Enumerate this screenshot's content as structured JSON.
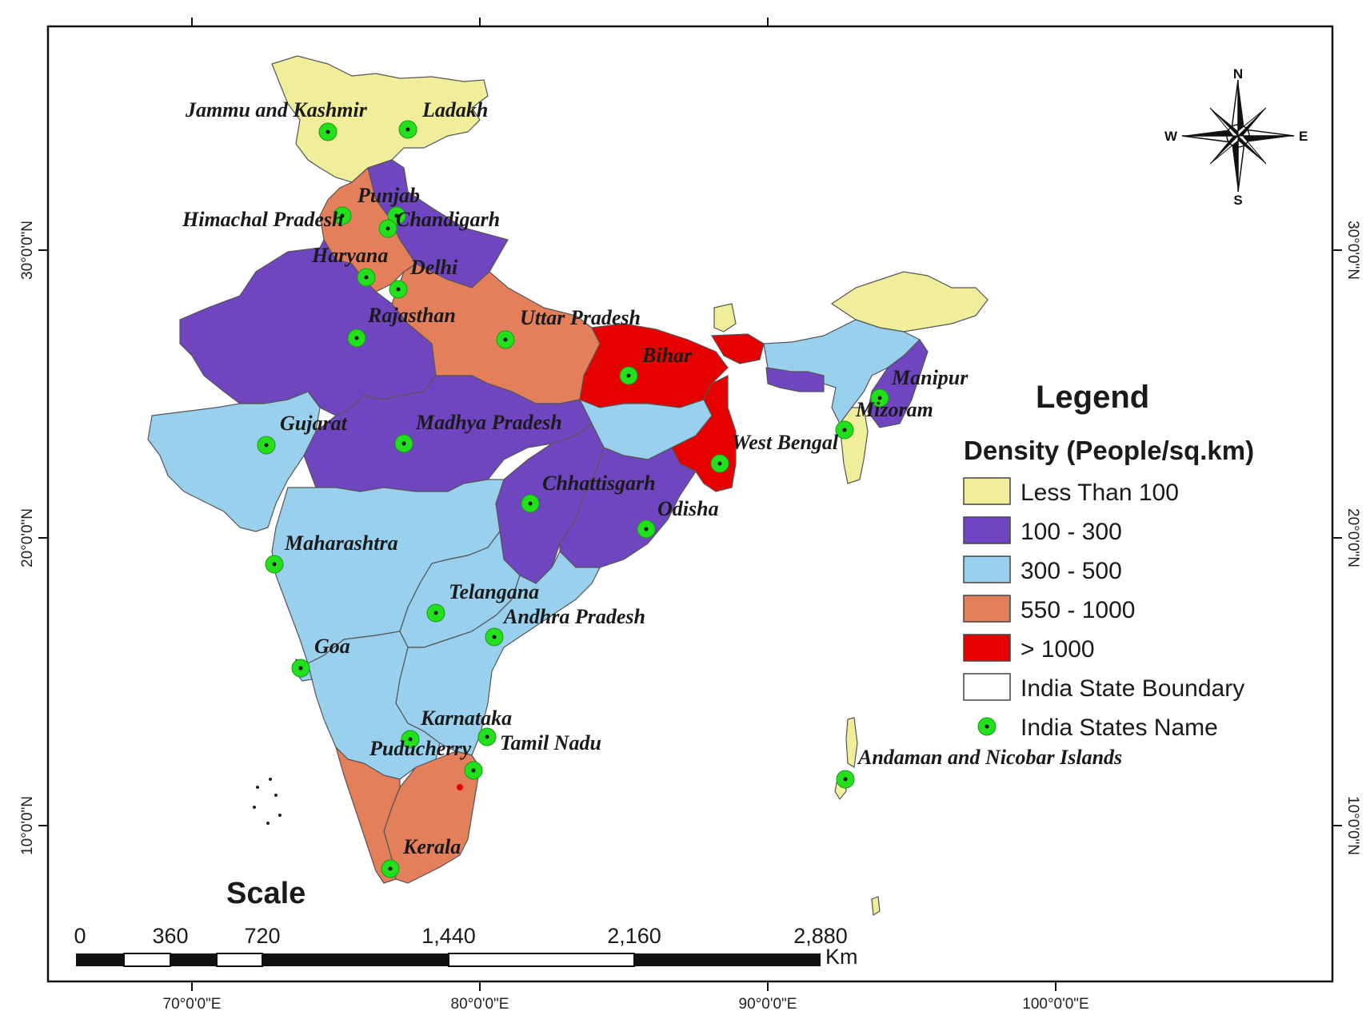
{
  "colors": {
    "less_than_100": "#f0ee9a",
    "100_300": "#6f45c0",
    "300_500": "#98d0ee",
    "550_1000": "#e47f5c",
    "gt_1000": "#e60000",
    "marker": "#22e01c"
  },
  "coordinates": {
    "lon_labels": [
      "70°0'0\"E",
      "80°0'0\"E",
      "90°0'0\"E",
      "100°0'0\"E"
    ],
    "lat_labels": [
      "30°0'0\"N",
      "20°0'0\"N",
      "10°0'0\"N"
    ]
  },
  "states": [
    {
      "name": "Jammu and Kashmir",
      "density_class": "Less Than 100"
    },
    {
      "name": "Ladakh",
      "density_class": "Less Than 100"
    },
    {
      "name": "Punjab",
      "density_class": "550 - 1000"
    },
    {
      "name": "Himachal Pradesh",
      "density_class": "100 - 300"
    },
    {
      "name": "Chandigarh",
      "density_class": "> 1000"
    },
    {
      "name": "Haryana",
      "density_class": "550 - 1000"
    },
    {
      "name": "Delhi",
      "density_class": "> 1000"
    },
    {
      "name": "Rajasthan",
      "density_class": "100 - 300"
    },
    {
      "name": "Uttar Pradesh",
      "density_class": "550 - 1000"
    },
    {
      "name": "Bihar",
      "density_class": "> 1000"
    },
    {
      "name": "Manipur",
      "density_class": "100 - 300"
    },
    {
      "name": "Mizoram",
      "density_class": "Less Than 100"
    },
    {
      "name": "Gujarat",
      "density_class": "300 - 500"
    },
    {
      "name": "Madhya Pradesh",
      "density_class": "100 - 300"
    },
    {
      "name": "West Bengal",
      "density_class": "> 1000"
    },
    {
      "name": "Chhattisgarh",
      "density_class": "100 - 300"
    },
    {
      "name": "Odisha",
      "density_class": "100 - 300"
    },
    {
      "name": "Maharashtra",
      "density_class": "300 - 500"
    },
    {
      "name": "Telangana",
      "density_class": "300 - 500"
    },
    {
      "name": "Andhra Pradesh",
      "density_class": "300 - 500"
    },
    {
      "name": "Goa",
      "density_class": "300 - 500"
    },
    {
      "name": "Karnataka",
      "density_class": "300 - 500"
    },
    {
      "name": "Tamil Nadu",
      "density_class": "550 - 1000"
    },
    {
      "name": "Puducherry",
      "density_class": "> 1000"
    },
    {
      "name": "Kerala",
      "density_class": "550 - 1000"
    },
    {
      "name": "Andaman and Nicobar Islands",
      "density_class": "Less Than 100"
    }
  ],
  "legend": {
    "title": "Legend",
    "subtitle": "Density (People/sq.km)",
    "items": [
      {
        "label": "Less Than 100",
        "color": "#f0ee9a"
      },
      {
        "label": "100 - 300",
        "color": "#6f45c0"
      },
      {
        "label": "300 - 500",
        "color": "#98d0ee"
      },
      {
        "label": "550 - 1000",
        "color": "#e47f5c"
      },
      {
        "label": "> 1000",
        "color": "#e60000"
      },
      {
        "label": "India State Boundary",
        "color": "#ffffff"
      },
      {
        "label": "India States Name",
        "color": "#22e01c"
      }
    ]
  },
  "scale": {
    "title": "Scale",
    "ticks": [
      "0",
      "360",
      "720",
      "1,440",
      "2,160",
      "2,880"
    ],
    "unit": "Km"
  },
  "compass": {
    "n": "N",
    "s": "S",
    "e": "E",
    "w": "W"
  }
}
